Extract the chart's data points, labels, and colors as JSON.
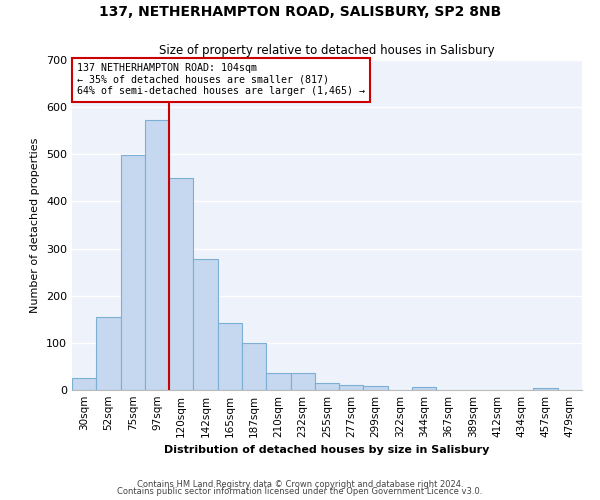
{
  "title": "137, NETHERHAMPTON ROAD, SALISBURY, SP2 8NB",
  "subtitle": "Size of property relative to detached houses in Salisbury",
  "xlabel": "Distribution of detached houses by size in Salisbury",
  "ylabel": "Number of detached properties",
  "categories": [
    "30sqm",
    "52sqm",
    "75sqm",
    "97sqm",
    "120sqm",
    "142sqm",
    "165sqm",
    "187sqm",
    "210sqm",
    "232sqm",
    "255sqm",
    "277sqm",
    "299sqm",
    "322sqm",
    "344sqm",
    "367sqm",
    "389sqm",
    "412sqm",
    "434sqm",
    "457sqm",
    "479sqm"
  ],
  "values": [
    25,
    155,
    498,
    573,
    450,
    277,
    143,
    99,
    37,
    36,
    14,
    11,
    8,
    0,
    6,
    0,
    0,
    0,
    0,
    5,
    0
  ],
  "bar_color": "#c5d8ef",
  "bar_edge_color": "#7bafd4",
  "bg_color": "#eef3fb",
  "grid_color": "#ffffff",
  "vline_x": 3.5,
  "vline_color": "#cc0000",
  "annotation_line1": "137 NETHERHAMPTON ROAD: 104sqm",
  "annotation_line2": "← 35% of detached houses are smaller (817)",
  "annotation_line3": "64% of semi-detached houses are larger (1,465) →",
  "annotation_box_color": "#cc0000",
  "ylim": [
    0,
    700
  ],
  "yticks": [
    0,
    100,
    200,
    300,
    400,
    500,
    600,
    700
  ],
  "footnote1": "Contains HM Land Registry data © Crown copyright and database right 2024.",
  "footnote2": "Contains public sector information licensed under the Open Government Licence v3.0."
}
